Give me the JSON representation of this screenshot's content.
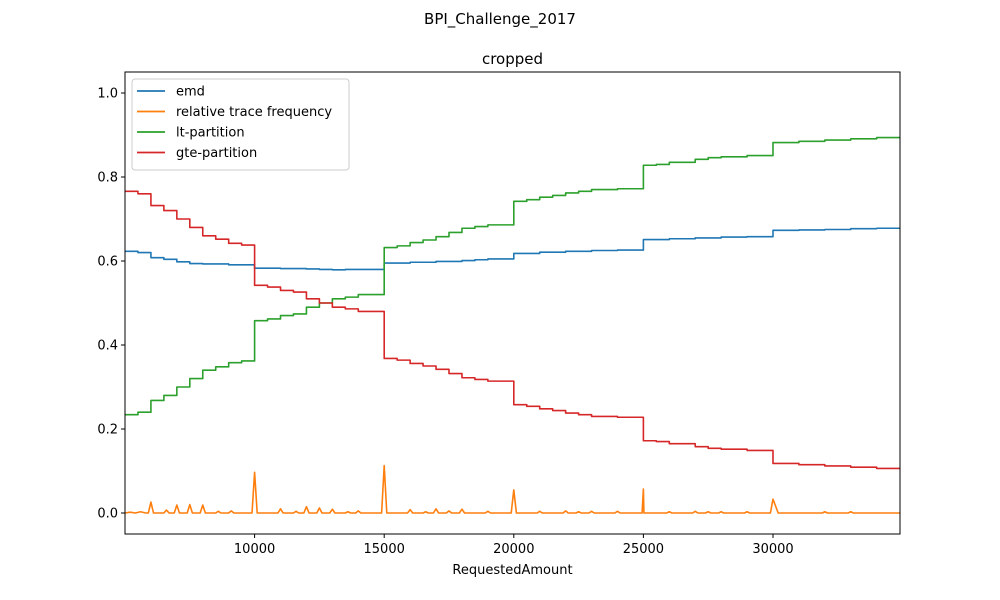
{
  "figure": {
    "suptitle": "BPI_Challenge_2017"
  },
  "chart_data": {
    "type": "line",
    "title": "cropped",
    "xlabel": "RequestedAmount",
    "ylabel": "",
    "xlim": [
      5000,
      34900
    ],
    "ylim": [
      -0.05,
      1.05
    ],
    "xticks": [
      10000,
      15000,
      20000,
      25000,
      30000
    ],
    "xtick_labels": [
      "10000",
      "15000",
      "20000",
      "25000",
      "30000"
    ],
    "yticks": [
      0.0,
      0.2,
      0.4,
      0.6,
      0.8,
      1.0
    ],
    "ytick_labels": [
      "0.0",
      "0.2",
      "0.4",
      "0.6",
      "0.8",
      "1.0"
    ],
    "grid": false,
    "legend_position": "upper-left",
    "series": [
      {
        "name": "emd",
        "color": "#1f77b4",
        "step": true,
        "points": [
          [
            5000,
            0.623
          ],
          [
            5500,
            0.62
          ],
          [
            6000,
            0.608
          ],
          [
            6500,
            0.604
          ],
          [
            7000,
            0.598
          ],
          [
            7500,
            0.594
          ],
          [
            8000,
            0.593
          ],
          [
            9000,
            0.591
          ],
          [
            10000,
            0.583
          ],
          [
            11000,
            0.582
          ],
          [
            12000,
            0.581
          ],
          [
            12500,
            0.58
          ],
          [
            13000,
            0.579
          ],
          [
            13500,
            0.58
          ],
          [
            14000,
            0.58
          ],
          [
            15000,
            0.595
          ],
          [
            16000,
            0.597
          ],
          [
            17000,
            0.599
          ],
          [
            18000,
            0.601
          ],
          [
            18500,
            0.603
          ],
          [
            19000,
            0.605
          ],
          [
            20000,
            0.618
          ],
          [
            21000,
            0.621
          ],
          [
            22000,
            0.623
          ],
          [
            23000,
            0.625
          ],
          [
            24000,
            0.626
          ],
          [
            25000,
            0.651
          ],
          [
            26000,
            0.653
          ],
          [
            27000,
            0.655
          ],
          [
            28000,
            0.657
          ],
          [
            29000,
            0.658
          ],
          [
            30000,
            0.673
          ],
          [
            31000,
            0.674
          ],
          [
            32000,
            0.675
          ],
          [
            33000,
            0.677
          ],
          [
            34000,
            0.678
          ],
          [
            34900,
            0.678
          ]
        ]
      },
      {
        "name": "relative trace frequency",
        "color": "#ff7f0e",
        "step": false,
        "points": [
          [
            5000,
            0.0
          ],
          [
            5200,
            0.002
          ],
          [
            5400,
            0.0
          ],
          [
            5600,
            0.003
          ],
          [
            5800,
            0.0
          ],
          [
            5900,
            0.0
          ],
          [
            6000,
            0.026
          ],
          [
            6100,
            0.0
          ],
          [
            6500,
            0.0
          ],
          [
            6600,
            0.007
          ],
          [
            6700,
            0.0
          ],
          [
            6900,
            0.0
          ],
          [
            7000,
            0.019
          ],
          [
            7100,
            0.0
          ],
          [
            7400,
            0.0
          ],
          [
            7500,
            0.02
          ],
          [
            7600,
            0.0
          ],
          [
            7900,
            0.0
          ],
          [
            8000,
            0.019
          ],
          [
            8100,
            0.0
          ],
          [
            8500,
            0.0
          ],
          [
            8600,
            0.004
          ],
          [
            8700,
            0.0
          ],
          [
            9000,
            0.0
          ],
          [
            9100,
            0.005
          ],
          [
            9200,
            0.0
          ],
          [
            9900,
            0.0
          ],
          [
            10000,
            0.097
          ],
          [
            10100,
            0.0
          ],
          [
            10900,
            0.0
          ],
          [
            11000,
            0.01
          ],
          [
            11100,
            0.0
          ],
          [
            11500,
            0.0
          ],
          [
            11600,
            0.004
          ],
          [
            11700,
            0.0
          ],
          [
            11900,
            0.0
          ],
          [
            12000,
            0.015
          ],
          [
            12100,
            0.0
          ],
          [
            12400,
            0.0
          ],
          [
            12500,
            0.012
          ],
          [
            12600,
            0.0
          ],
          [
            12900,
            0.0
          ],
          [
            13000,
            0.009
          ],
          [
            13100,
            0.0
          ],
          [
            13500,
            0.0
          ],
          [
            13600,
            0.003
          ],
          [
            13700,
            0.0
          ],
          [
            13900,
            0.0
          ],
          [
            14000,
            0.005
          ],
          [
            14100,
            0.0
          ],
          [
            14900,
            0.0
          ],
          [
            15000,
            0.113
          ],
          [
            15100,
            0.0
          ],
          [
            15900,
            0.0
          ],
          [
            16000,
            0.008
          ],
          [
            16100,
            0.0
          ],
          [
            16500,
            0.0
          ],
          [
            16600,
            0.003
          ],
          [
            16700,
            0.0
          ],
          [
            16900,
            0.0
          ],
          [
            17000,
            0.01
          ],
          [
            17100,
            0.0
          ],
          [
            17400,
            0.0
          ],
          [
            17500,
            0.005
          ],
          [
            17600,
            0.0
          ],
          [
            17900,
            0.0
          ],
          [
            18000,
            0.009
          ],
          [
            18100,
            0.0
          ],
          [
            18900,
            0.0
          ],
          [
            19000,
            0.004
          ],
          [
            19100,
            0.0
          ],
          [
            19900,
            0.0
          ],
          [
            20000,
            0.055
          ],
          [
            20100,
            0.0
          ],
          [
            20900,
            0.0
          ],
          [
            21000,
            0.004
          ],
          [
            21100,
            0.0
          ],
          [
            21900,
            0.0
          ],
          [
            22000,
            0.005
          ],
          [
            22100,
            0.0
          ],
          [
            22400,
            0.0
          ],
          [
            22500,
            0.003
          ],
          [
            22600,
            0.0
          ],
          [
            22900,
            0.0
          ],
          [
            23000,
            0.004
          ],
          [
            23100,
            0.0
          ],
          [
            23900,
            0.0
          ],
          [
            24000,
            0.004
          ],
          [
            24100,
            0.0
          ],
          [
            24950,
            0.0
          ],
          [
            25000,
            0.057
          ],
          [
            25020,
            0.0
          ],
          [
            25900,
            0.0
          ],
          [
            26000,
            0.003
          ],
          [
            26100,
            0.0
          ],
          [
            26900,
            0.0
          ],
          [
            27000,
            0.004
          ],
          [
            27100,
            0.0
          ],
          [
            27400,
            0.0
          ],
          [
            27500,
            0.003
          ],
          [
            27600,
            0.0
          ],
          [
            27900,
            0.0
          ],
          [
            28000,
            0.003
          ],
          [
            28100,
            0.0
          ],
          [
            28900,
            0.0
          ],
          [
            29000,
            0.003
          ],
          [
            29100,
            0.0
          ],
          [
            29900,
            0.0
          ],
          [
            30000,
            0.033
          ],
          [
            30200,
            0.0
          ],
          [
            31900,
            0.0
          ],
          [
            32000,
            0.003
          ],
          [
            32100,
            0.0
          ],
          [
            32900,
            0.0
          ],
          [
            33000,
            0.003
          ],
          [
            33100,
            0.0
          ],
          [
            34900,
            0.0
          ]
        ]
      },
      {
        "name": "lt-partition",
        "color": "#2ca02c",
        "step": true,
        "points": [
          [
            5000,
            0.234
          ],
          [
            5500,
            0.24
          ],
          [
            6000,
            0.268
          ],
          [
            6500,
            0.28
          ],
          [
            7000,
            0.3
          ],
          [
            7500,
            0.32
          ],
          [
            8000,
            0.34
          ],
          [
            8500,
            0.348
          ],
          [
            9000,
            0.358
          ],
          [
            9500,
            0.362
          ],
          [
            10000,
            0.458
          ],
          [
            10500,
            0.462
          ],
          [
            11000,
            0.47
          ],
          [
            11500,
            0.474
          ],
          [
            12000,
            0.49
          ],
          [
            12500,
            0.5
          ],
          [
            13000,
            0.51
          ],
          [
            13500,
            0.514
          ],
          [
            14000,
            0.52
          ],
          [
            15000,
            0.632
          ],
          [
            15500,
            0.636
          ],
          [
            16000,
            0.644
          ],
          [
            16500,
            0.65
          ],
          [
            17000,
            0.658
          ],
          [
            17500,
            0.668
          ],
          [
            18000,
            0.678
          ],
          [
            18500,
            0.682
          ],
          [
            19000,
            0.686
          ],
          [
            20000,
            0.742
          ],
          [
            20500,
            0.746
          ],
          [
            21000,
            0.752
          ],
          [
            21500,
            0.756
          ],
          [
            22000,
            0.762
          ],
          [
            22500,
            0.766
          ],
          [
            23000,
            0.77
          ],
          [
            24000,
            0.772
          ],
          [
            25000,
            0.828
          ],
          [
            25500,
            0.83
          ],
          [
            26000,
            0.835
          ],
          [
            27000,
            0.842
          ],
          [
            27500,
            0.846
          ],
          [
            28000,
            0.848
          ],
          [
            29000,
            0.851
          ],
          [
            30000,
            0.882
          ],
          [
            31000,
            0.885
          ],
          [
            32000,
            0.888
          ],
          [
            33000,
            0.891
          ],
          [
            34000,
            0.894
          ],
          [
            34900,
            0.895
          ]
        ]
      },
      {
        "name": "gte-partition",
        "color": "#d62728",
        "step": true,
        "points": [
          [
            5000,
            0.766
          ],
          [
            5500,
            0.76
          ],
          [
            6000,
            0.732
          ],
          [
            6500,
            0.72
          ],
          [
            7000,
            0.7
          ],
          [
            7500,
            0.68
          ],
          [
            8000,
            0.66
          ],
          [
            8500,
            0.652
          ],
          [
            9000,
            0.642
          ],
          [
            9500,
            0.638
          ],
          [
            10000,
            0.542
          ],
          [
            10500,
            0.538
          ],
          [
            11000,
            0.53
          ],
          [
            11500,
            0.526
          ],
          [
            12000,
            0.51
          ],
          [
            12500,
            0.5
          ],
          [
            13000,
            0.49
          ],
          [
            13500,
            0.486
          ],
          [
            14000,
            0.48
          ],
          [
            15000,
            0.368
          ],
          [
            15500,
            0.364
          ],
          [
            16000,
            0.356
          ],
          [
            16500,
            0.35
          ],
          [
            17000,
            0.342
          ],
          [
            17500,
            0.332
          ],
          [
            18000,
            0.322
          ],
          [
            18500,
            0.318
          ],
          [
            19000,
            0.314
          ],
          [
            20000,
            0.258
          ],
          [
            20500,
            0.254
          ],
          [
            21000,
            0.248
          ],
          [
            21500,
            0.244
          ],
          [
            22000,
            0.238
          ],
          [
            22500,
            0.234
          ],
          [
            23000,
            0.23
          ],
          [
            24000,
            0.228
          ],
          [
            25000,
            0.172
          ],
          [
            25500,
            0.17
          ],
          [
            26000,
            0.165
          ],
          [
            27000,
            0.158
          ],
          [
            27500,
            0.154
          ],
          [
            28000,
            0.152
          ],
          [
            29000,
            0.149
          ],
          [
            30000,
            0.118
          ],
          [
            31000,
            0.115
          ],
          [
            32000,
            0.112
          ],
          [
            33000,
            0.109
          ],
          [
            34000,
            0.106
          ],
          [
            34900,
            0.105
          ]
        ]
      }
    ]
  }
}
